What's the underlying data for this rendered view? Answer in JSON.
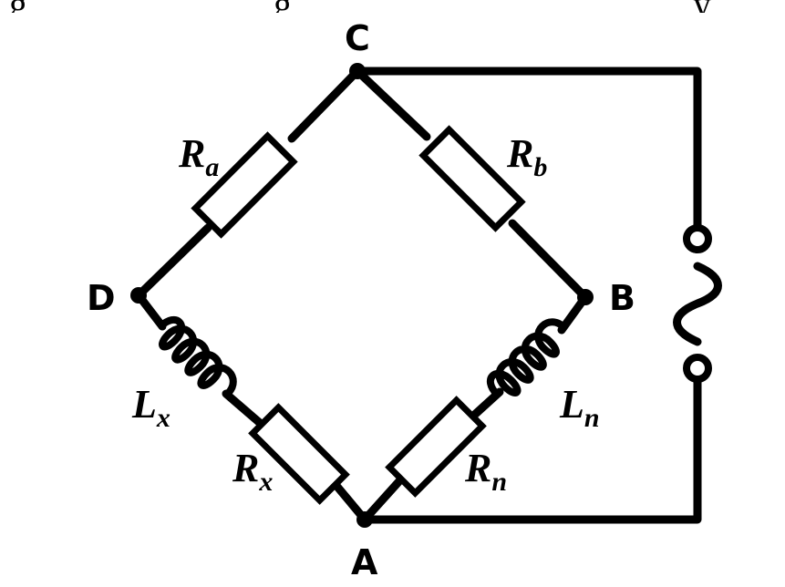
{
  "top_cut_text": "g ... g ... y ...",
  "nodes": {
    "a": "A",
    "b": "B",
    "c": "C",
    "d": "D"
  },
  "components": {
    "ra": {
      "main": "R",
      "sub": "a"
    },
    "rb": {
      "main": "R",
      "sub": "b"
    },
    "rx": {
      "main": "R",
      "sub": "x"
    },
    "rn": {
      "main": "R",
      "sub": "n"
    },
    "lx": {
      "main": "L",
      "sub": "x"
    },
    "ln": {
      "main": "L",
      "sub": "n"
    }
  },
  "source_symbol": "~"
}
